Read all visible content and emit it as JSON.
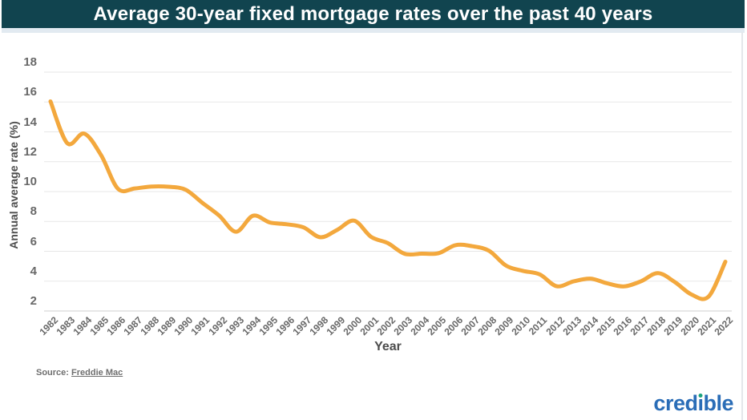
{
  "header": {
    "title": "Average 30-year fixed mortgage rates over the past 40 years"
  },
  "chart_data": {
    "type": "line",
    "title": "Average 30-year fixed mortgage rates over the past 40 years",
    "xlabel": "Year",
    "ylabel": "Annual average rate (%)",
    "x": [
      1982,
      1983,
      1984,
      1985,
      1986,
      1987,
      1988,
      1989,
      1990,
      1991,
      1992,
      1993,
      1994,
      1995,
      1996,
      1997,
      1998,
      1999,
      2000,
      2001,
      2002,
      2003,
      2004,
      2005,
      2006,
      2007,
      2008,
      2009,
      2010,
      2011,
      2012,
      2013,
      2014,
      2015,
      2016,
      2017,
      2018,
      2019,
      2020,
      2021,
      2022
    ],
    "series": [
      {
        "name": "30-year fixed mortgage rate",
        "color": "#f3a83d",
        "values": [
          16.04,
          13.24,
          13.88,
          12.43,
          10.19,
          10.21,
          10.34,
          10.32,
          10.13,
          9.25,
          8.39,
          7.31,
          8.38,
          7.93,
          7.81,
          7.6,
          6.94,
          7.44,
          8.05,
          6.97,
          6.54,
          5.83,
          5.84,
          5.87,
          6.41,
          6.34,
          6.03,
          5.04,
          4.69,
          4.45,
          3.66,
          3.98,
          4.17,
          3.85,
          3.65,
          3.99,
          4.54,
          3.94,
          3.1,
          2.96,
          5.3
        ]
      }
    ],
    "ylim": [
      2,
      18
    ],
    "yticks": [
      2,
      4,
      6,
      8,
      10,
      12,
      14,
      16,
      18
    ],
    "grid": true,
    "legend": "none"
  },
  "axes": {
    "y_title": "Annual average rate (%)",
    "x_title": "Year"
  },
  "source": {
    "label": "Source:",
    "link_text": "Freddie Mac"
  },
  "logo": {
    "name": "credible",
    "pre": "cred",
    "i_char": "ı",
    "post": "ble"
  },
  "colors": {
    "header_bg": "#11444f",
    "header_underline": "#e2eaf1",
    "line": "#f3a83d",
    "grid": "#e7e7e7",
    "axis_line": "#cfcfcf",
    "tick_text": "#686868",
    "logo_blue": "#2a6db7",
    "logo_green": "#1ba37c"
  }
}
